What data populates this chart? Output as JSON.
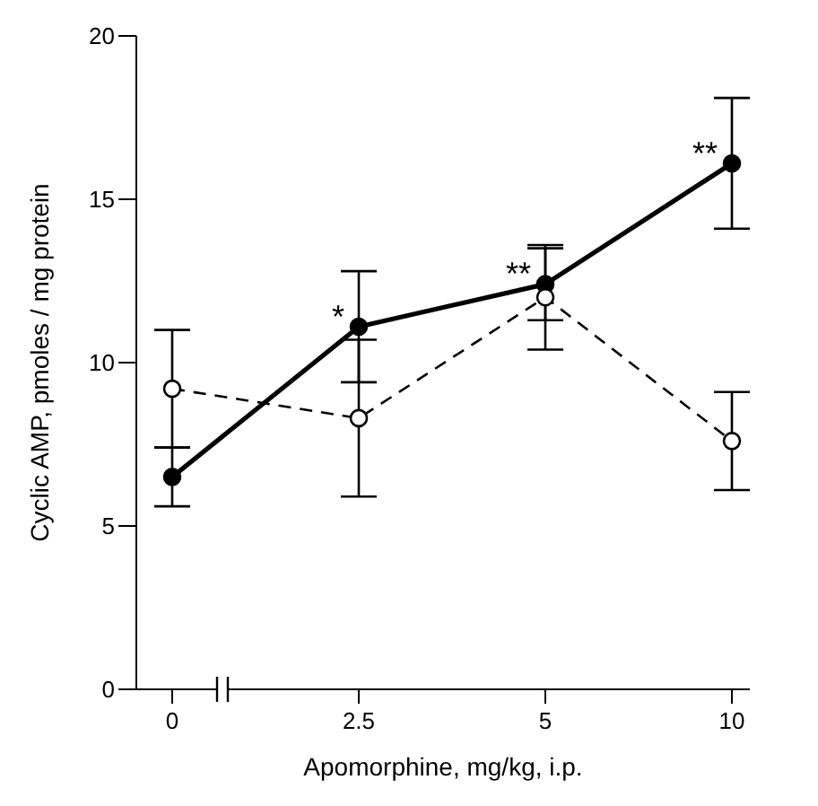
{
  "chart_data": {
    "type": "line",
    "xlabel": "Apomorphine,  mg/kg, i.p.",
    "ylabel": "Cyclic AMP,  pmoles / mg protein",
    "categories": [
      "0",
      "2.5",
      "5",
      "10"
    ],
    "ylim": [
      0,
      20
    ],
    "yticks": [
      0,
      5,
      10,
      15,
      20
    ],
    "marker": "circle",
    "series": [
      {
        "color": "#000000",
        "line_style": "solid",
        "values": [
          6.5,
          11.1,
          12.4,
          16.1
        ],
        "errors": [
          0.9,
          1.7,
          1.1,
          2.0
        ]
      },
      {
        "color": "#000000",
        "line_style": "dashed",
        "values": [
          9.2,
          8.3,
          12.0,
          7.6
        ],
        "errors": [
          1.8,
          2.4,
          1.6,
          1.5
        ]
      }
    ],
    "annotations": [
      {
        "text": "*",
        "x": "2.5",
        "y": 11.1
      },
      {
        "text": "**",
        "x": "5",
        "y": 12.4
      },
      {
        "text": "**",
        "x": "10",
        "y": 16.1
      }
    ]
  }
}
